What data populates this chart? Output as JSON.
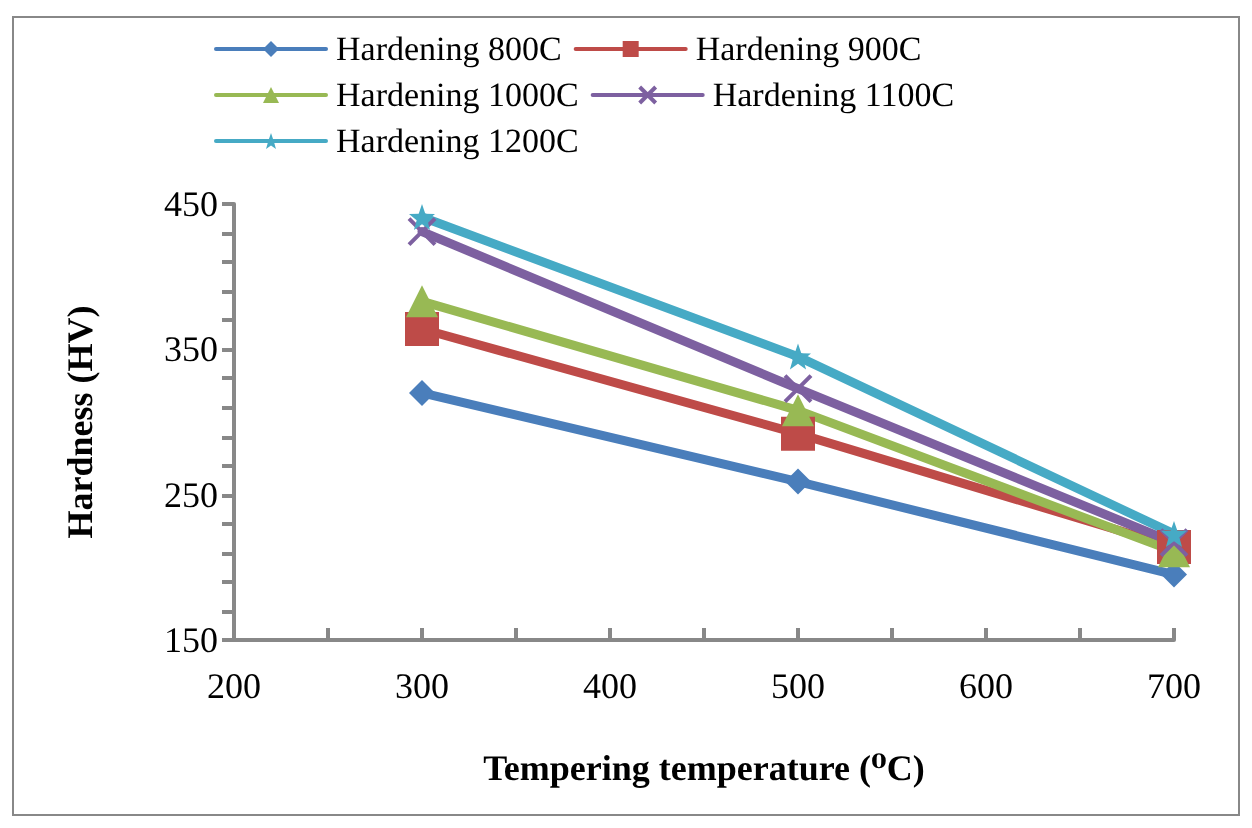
{
  "chart_data": {
    "type": "line",
    "xlabel": "Tempering temperature (⁰C)",
    "ylabel": "Hardness (HV)",
    "x": [
      300,
      500,
      700
    ],
    "series": [
      {
        "name": "Hardening 800C",
        "color": "#4a7ebb",
        "values": [
          320,
          259,
          195
        ],
        "marker": "diamond"
      },
      {
        "name": "Hardening 900C",
        "color": "#be4b48",
        "values": [
          364,
          292,
          214
        ],
        "marker": "square"
      },
      {
        "name": "Hardening 1000C",
        "color": "#98b954",
        "values": [
          383,
          308,
          211
        ],
        "marker": "triangle"
      },
      {
        "name": "Hardening 1100C",
        "color": "#7d60a0",
        "values": [
          431,
          323,
          217
        ],
        "marker": "cross"
      },
      {
        "name": "Hardening 1200C",
        "color": "#46aac5",
        "values": [
          441,
          345,
          223
        ],
        "marker": "star"
      }
    ],
    "xlim": [
      200,
      700
    ],
    "xticks": [
      200,
      {
        "value": 250,
        "label": null
      },
      300,
      {
        "value": 350,
        "label": null
      },
      400,
      {
        "value": 450,
        "label": null
      },
      500,
      {
        "value": 550,
        "label": null
      },
      600,
      {
        "value": 650,
        "label": null
      },
      700
    ],
    "ylim": [
      150,
      450
    ],
    "yticks": [
      150,
      {
        "value": 170,
        "label": null
      },
      {
        "value": 190,
        "label": null
      },
      {
        "value": 210,
        "label": null
      },
      {
        "value": 230,
        "label": null
      },
      250,
      {
        "value": 270,
        "label": null
      },
      {
        "value": 290,
        "label": null
      },
      {
        "value": 310,
        "label": null
      },
      {
        "value": 330,
        "label": null
      },
      350,
      {
        "value": 370,
        "label": null
      },
      {
        "value": 390,
        "label": null
      },
      {
        "value": 410,
        "label": null
      },
      {
        "value": 430,
        "label": null
      },
      450
    ],
    "grid": false,
    "legend": "top",
    "line_style": "solid"
  }
}
